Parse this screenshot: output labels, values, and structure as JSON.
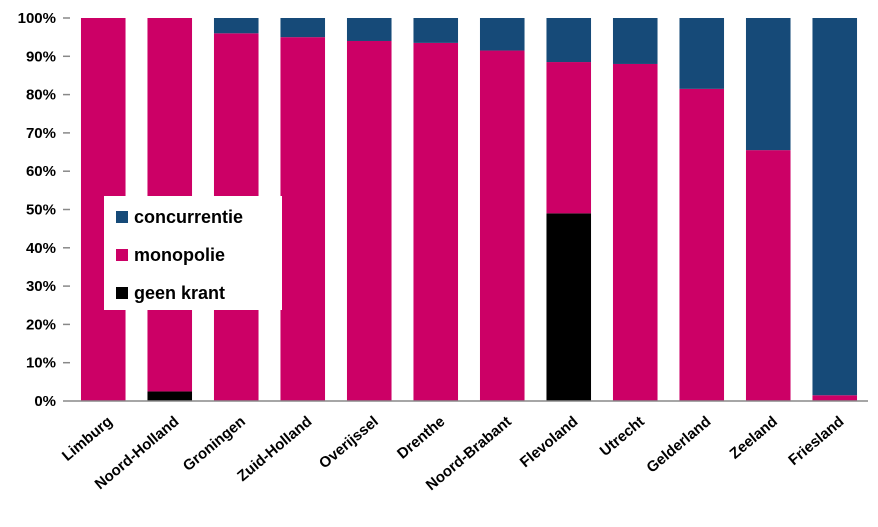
{
  "chart_data": {
    "type": "bar",
    "stacked": true,
    "percent": true,
    "categories": [
      "Limburg",
      "Noord-Holland",
      "Groningen",
      "Zuid-Holland",
      "Overijssel",
      "Drenthe",
      "Noord-Brabant",
      "Flevoland",
      "Utrecht",
      "Gelderland",
      "Zeeland",
      "Friesland"
    ],
    "series": [
      {
        "name": "geen krant",
        "color": "#000000",
        "values": [
          0,
          2.5,
          0,
          0,
          0,
          0,
          0,
          49,
          0,
          0,
          0,
          0
        ]
      },
      {
        "name": "monopolie",
        "color": "#cc0066",
        "values": [
          100,
          97.5,
          96,
          95,
          94,
          93.5,
          91.5,
          39.5,
          88,
          81.5,
          65.5,
          1.5
        ]
      },
      {
        "name": "concurrentie",
        "color": "#164a78",
        "values": [
          0,
          0,
          4,
          5,
          6,
          6.5,
          8.5,
          11.5,
          12,
          18.5,
          34.5,
          98.5
        ]
      }
    ],
    "ylim": [
      0,
      100
    ],
    "yticks": [
      "0%",
      "10%",
      "20%",
      "30%",
      "40%",
      "50%",
      "60%",
      "70%",
      "80%",
      "90%",
      "100%"
    ],
    "grid": false,
    "legend": {
      "placement": "left-middle",
      "entries": [
        "concurrentie",
        "monopolie",
        "geen krant"
      ]
    }
  }
}
